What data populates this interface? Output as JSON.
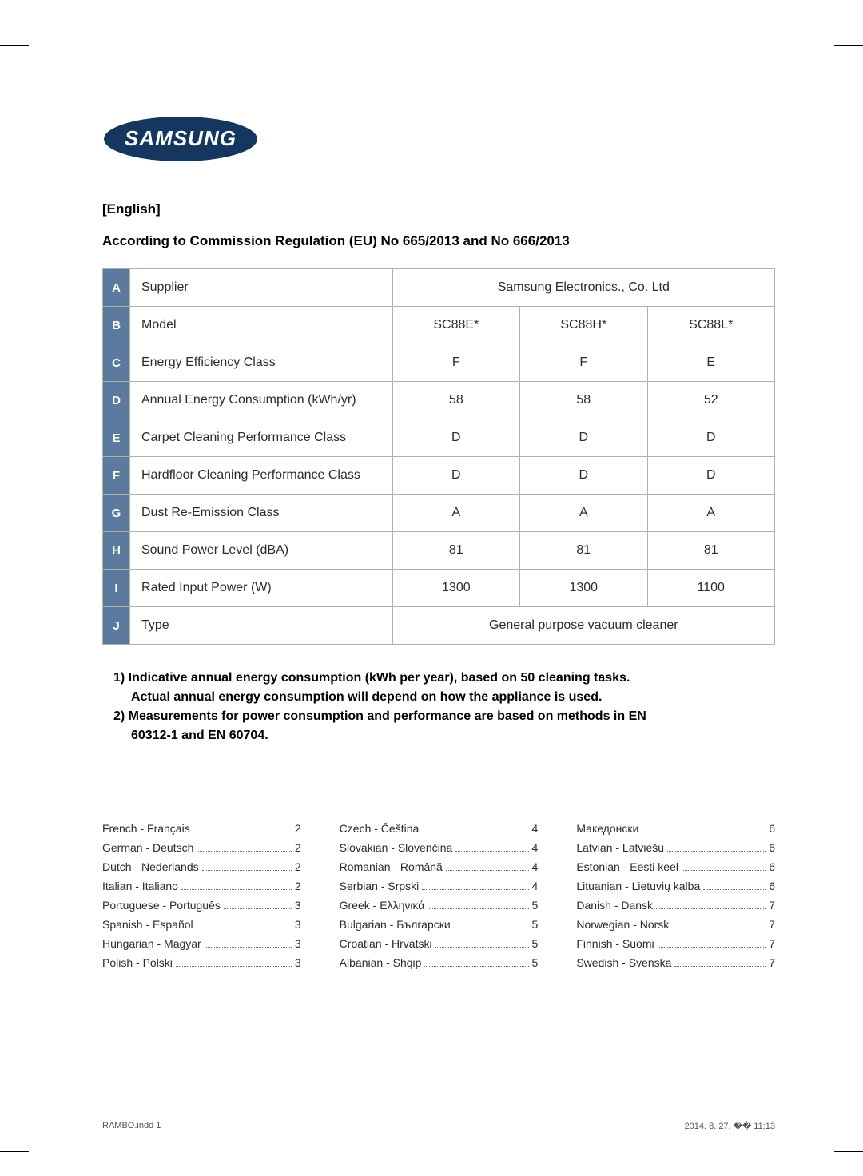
{
  "crop_marks": {
    "color": "#000000"
  },
  "logo": {
    "text": "SAMSUNG",
    "bg_color": "#15365f",
    "fg_color": "#ffffff"
  },
  "headings": {
    "lang": "[English]",
    "regulation": "According to Commission Regulation (EU) No 665/2013 and No 666/2013"
  },
  "spec_table": {
    "header_bg": "#5b7a9d",
    "header_fg": "#ffffff",
    "border_color": "#b0b0b0",
    "rows": [
      {
        "letter": "A",
        "label": "Supplier",
        "colspan_value": "Samsung Electronics., Co. Ltd"
      },
      {
        "letter": "B",
        "label": "Model",
        "values": [
          "SC88E*",
          "SC88H*",
          "SC88L*"
        ]
      },
      {
        "letter": "C",
        "label": "Energy Efficiency Class",
        "values": [
          "F",
          "F",
          "E"
        ]
      },
      {
        "letter": "D",
        "label": "Annual Energy Consumption (kWh/yr)",
        "values": [
          "58",
          "58",
          "52"
        ]
      },
      {
        "letter": "E",
        "label": "Carpet Cleaning Performance Class",
        "values": [
          "D",
          "D",
          "D"
        ]
      },
      {
        "letter": "F",
        "label": "Hardfloor Cleaning Performance Class",
        "values": [
          "D",
          "D",
          "D"
        ]
      },
      {
        "letter": "G",
        "label": "Dust Re-Emission Class",
        "values": [
          "A",
          "A",
          "A"
        ]
      },
      {
        "letter": "H",
        "label": "Sound Power Level (dBA)",
        "values": [
          "81",
          "81",
          "81"
        ]
      },
      {
        "letter": "I",
        "label": "Rated Input Power (W)",
        "values": [
          "1300",
          "1300",
          "1100"
        ]
      },
      {
        "letter": "J",
        "label": "Type",
        "colspan_value": "General purpose vacuum cleaner"
      }
    ]
  },
  "notes": {
    "line1a": "1) Indicative annual energy consumption (kWh per year), based on 50 cleaning tasks.",
    "line1b": "Actual annual energy consumption will depend on how the appliance is used.",
    "line2a": "2) Measurements for power consumption and performance are based on methods in EN",
    "line2b": "60312-1 and EN 60704."
  },
  "languages": {
    "col1": [
      {
        "name": "French - Français",
        "page": "2"
      },
      {
        "name": "German - Deutsch",
        "page": "2"
      },
      {
        "name": "Dutch - Nederlands",
        "page": "2"
      },
      {
        "name": "Italian - Italiano",
        "page": "2"
      },
      {
        "name": "Portuguese - Português",
        "page": "3"
      },
      {
        "name": "Spanish - Español",
        "page": "3"
      },
      {
        "name": "Hungarian - Magyar",
        "page": "3"
      },
      {
        "name": "Polish - Polski",
        "page": "3"
      }
    ],
    "col2": [
      {
        "name": "Czech - Čeština",
        "page": "4"
      },
      {
        "name": "Slovakian - Slovenčina",
        "page": "4"
      },
      {
        "name": "Romanian - Română",
        "page": "4"
      },
      {
        "name": "Serbian - Srpski",
        "page": "4"
      },
      {
        "name": "Greek - Ελληνικά",
        "page": "5"
      },
      {
        "name": "Bulgarian - Български",
        "page": "5"
      },
      {
        "name": "Croatian - Hrvatski",
        "page": "5"
      },
      {
        "name": "Albanian - Shqip",
        "page": "5"
      }
    ],
    "col3": [
      {
        "name": "Македонски",
        "page": "6"
      },
      {
        "name": "Latvian - Latviešu",
        "page": "6"
      },
      {
        "name": "Estonian - Eesti keel",
        "page": "6"
      },
      {
        "name": "Lituanian - Lietuvių kalba",
        "page": "6"
      },
      {
        "name": "Danish - Dansk",
        "page": "7"
      },
      {
        "name": "Norwegian - Norsk",
        "page": "7"
      },
      {
        "name": "Finnish - Suomi",
        "page": "7"
      },
      {
        "name": "Swedish - Svenska",
        "page": "7"
      }
    ]
  },
  "footer": {
    "left": "RAMBO.indd   1",
    "right": "2014. 8. 27.   �� 11:13"
  }
}
